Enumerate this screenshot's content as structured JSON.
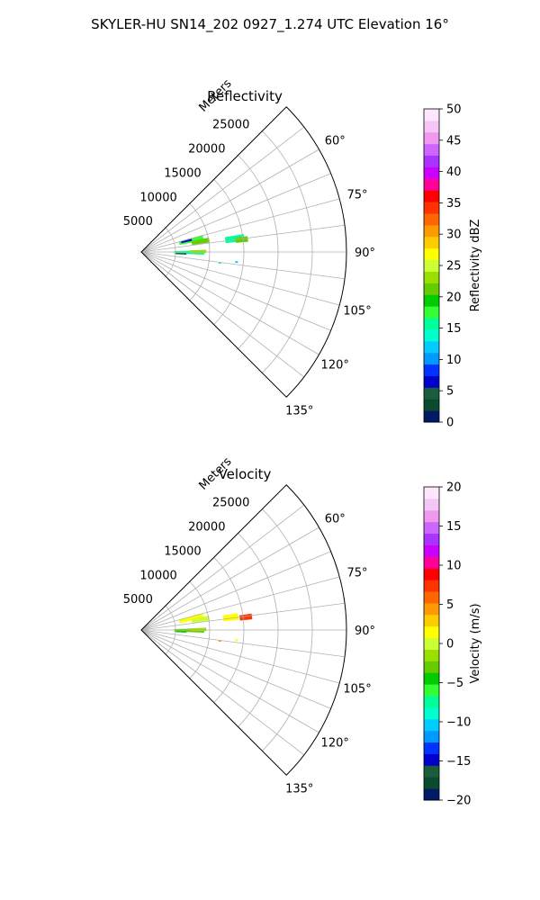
{
  "figure": {
    "title": "SKYLER-HU  SN14_202  0927_1.274 UTC Elevation 16°"
  },
  "chart_data": [
    {
      "type": "heatmap",
      "projection": "polar-sector",
      "title": "Reflectivity",
      "radial_label": "Meters",
      "radial_ticks": [
        5000,
        10000,
        15000,
        20000,
        25000
      ],
      "radial_tick_labels": [
        "5000",
        "10000",
        "15000",
        "20000",
        "25000"
      ],
      "rlim": [
        0,
        30000
      ],
      "azimuth_range_deg": [
        45,
        135
      ],
      "azimuth_ticks_deg": [
        60,
        75,
        90,
        105,
        120,
        135
      ],
      "azimuth_tick_labels": [
        "60°",
        "75°",
        "90°",
        "105°",
        "120°",
        "135°"
      ],
      "grid": true,
      "colorbar": {
        "label": "Reflectivity dBZ",
        "range": [
          0,
          50
        ],
        "ticks": [
          0,
          5,
          10,
          15,
          20,
          25,
          30,
          35,
          40,
          45,
          50
        ],
        "tick_labels": [
          "0",
          "5",
          "10",
          "15",
          "20",
          "25",
          "30",
          "35",
          "40",
          "45",
          "50"
        ],
        "stops": [
          "#001a66",
          "#0a4a2e",
          "#1a5c3c",
          "#0000cc",
          "#0033ff",
          "#0099ff",
          "#00ccff",
          "#00ffcc",
          "#00ff99",
          "#33ff33",
          "#00cc00",
          "#66cc00",
          "#99e000",
          "#ccff33",
          "#ffff00",
          "#ffcc00",
          "#ff9900",
          "#ff6600",
          "#ff3300",
          "#ff0000",
          "#ff0099",
          "#cc00ff",
          "#aa33ff",
          "#cc66ff",
          "#ee99ee",
          "#f5c6f5",
          "#ffe6ff"
        ]
      },
      "echoes": [
        {
          "az": 77,
          "r": 7500,
          "dr": 3600,
          "daz": 5,
          "value": 17
        },
        {
          "az": 80,
          "r": 8800,
          "dr": 2600,
          "daz": 4,
          "value": 22
        },
        {
          "az": 76,
          "r": 6800,
          "dr": 1600,
          "daz": 3,
          "value": 6
        },
        {
          "az": 82,
          "r": 13800,
          "dr": 2800,
          "daz": 4,
          "value": 15
        },
        {
          "az": 83,
          "r": 14800,
          "dr": 1800,
          "daz": 3,
          "value": 21
        },
        {
          "az": 90.5,
          "r": 7000,
          "dr": 4400,
          "daz": 4,
          "value": 16
        },
        {
          "az": 89.5,
          "r": 8300,
          "dr": 2400,
          "daz": 3,
          "value": 23
        },
        {
          "az": 92.5,
          "r": 5800,
          "dr": 1600,
          "daz": 2,
          "value": 5
        },
        {
          "az": 98,
          "r": 11600,
          "dr": 400,
          "daz": 1,
          "value": 15
        },
        {
          "az": 96,
          "r": 14000,
          "dr": 400,
          "daz": 1,
          "value": 12
        }
      ]
    },
    {
      "type": "heatmap",
      "projection": "polar-sector",
      "title": "Velocity",
      "radial_label": "Meters",
      "radial_ticks": [
        5000,
        10000,
        15000,
        20000,
        25000
      ],
      "radial_tick_labels": [
        "5000",
        "10000",
        "15000",
        "20000",
        "25000"
      ],
      "rlim": [
        0,
        30000
      ],
      "azimuth_range_deg": [
        45,
        135
      ],
      "azimuth_ticks_deg": [
        60,
        75,
        90,
        105,
        120,
        135
      ],
      "azimuth_tick_labels": [
        "60°",
        "75°",
        "90°",
        "105°",
        "120°",
        "135°"
      ],
      "grid": true,
      "colorbar": {
        "label": "Velocity (m/s)",
        "range": [
          -20,
          20
        ],
        "ticks": [
          -20,
          -15,
          -10,
          -5,
          0,
          5,
          10,
          15,
          20
        ],
        "tick_labels": [
          "−20",
          "−15",
          "−10",
          "−5",
          "0",
          "5",
          "10",
          "15",
          "20"
        ],
        "stops": [
          "#001a66",
          "#0a4a2e",
          "#1a5c3c",
          "#0000cc",
          "#0033ff",
          "#0099ff",
          "#00ccff",
          "#00ffcc",
          "#00ff99",
          "#33ff33",
          "#00cc00",
          "#66cc00",
          "#99e000",
          "#ccff33",
          "#ffff00",
          "#ffcc00",
          "#ff9900",
          "#ff6600",
          "#ff3300",
          "#ff0000",
          "#ff0099",
          "#cc00ff",
          "#aa33ff",
          "#cc66ff",
          "#ee99ee",
          "#f5c6f5",
          "#ffe6ff"
        ]
      },
      "echoes": [
        {
          "az": 77,
          "r": 7500,
          "dr": 3600,
          "daz": 5,
          "value": 1
        },
        {
          "az": 80,
          "r": 8800,
          "dr": 2600,
          "daz": 4,
          "value": 0
        },
        {
          "az": 82,
          "r": 13200,
          "dr": 2200,
          "daz": 4,
          "value": 2
        },
        {
          "az": 83,
          "r": 15400,
          "dr": 1800,
          "daz": 3,
          "value": 7
        },
        {
          "az": 90.5,
          "r": 7000,
          "dr": 4400,
          "daz": 4,
          "value": -3
        },
        {
          "az": 89.5,
          "r": 8300,
          "dr": 2400,
          "daz": 3,
          "value": -2
        },
        {
          "az": 92.5,
          "r": 5800,
          "dr": 1600,
          "daz": 2,
          "value": -5
        },
        {
          "az": 98,
          "r": 11600,
          "dr": 400,
          "daz": 1,
          "value": 4
        },
        {
          "az": 96,
          "r": 14000,
          "dr": 400,
          "daz": 1,
          "value": 1
        }
      ]
    }
  ]
}
